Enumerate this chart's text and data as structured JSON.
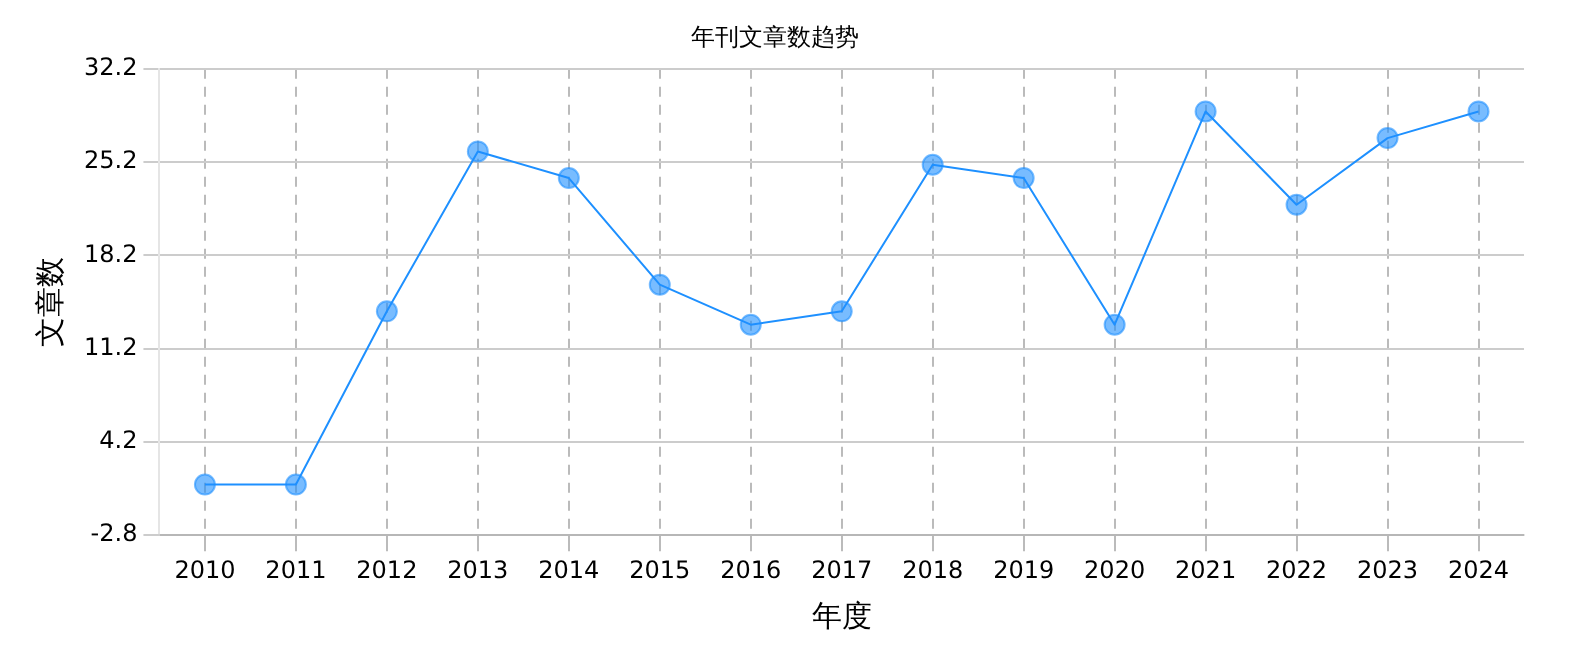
{
  "chart_data": {
    "type": "line",
    "title": "年刊文章数趋势",
    "xlabel": "年度",
    "ylabel": "文章数",
    "categories": [
      "2010",
      "2011",
      "2012",
      "2013",
      "2014",
      "2015",
      "2016",
      "2017",
      "2018",
      "2019",
      "2020",
      "2021",
      "2022",
      "2023",
      "2024"
    ],
    "series": [
      {
        "color": "#1e90ff",
        "values": [
          1,
          1,
          14,
          26,
          24,
          16,
          13,
          14,
          25,
          24,
          13,
          29,
          22,
          27,
          29
        ]
      }
    ],
    "ylim": [
      -2.8,
      32.2
    ],
    "yticks": [
      -2.8,
      4.2,
      11.2,
      18.2,
      25.2,
      32.2
    ],
    "grid": true,
    "legend": false,
    "marker": "circle",
    "line_style": "solid"
  }
}
